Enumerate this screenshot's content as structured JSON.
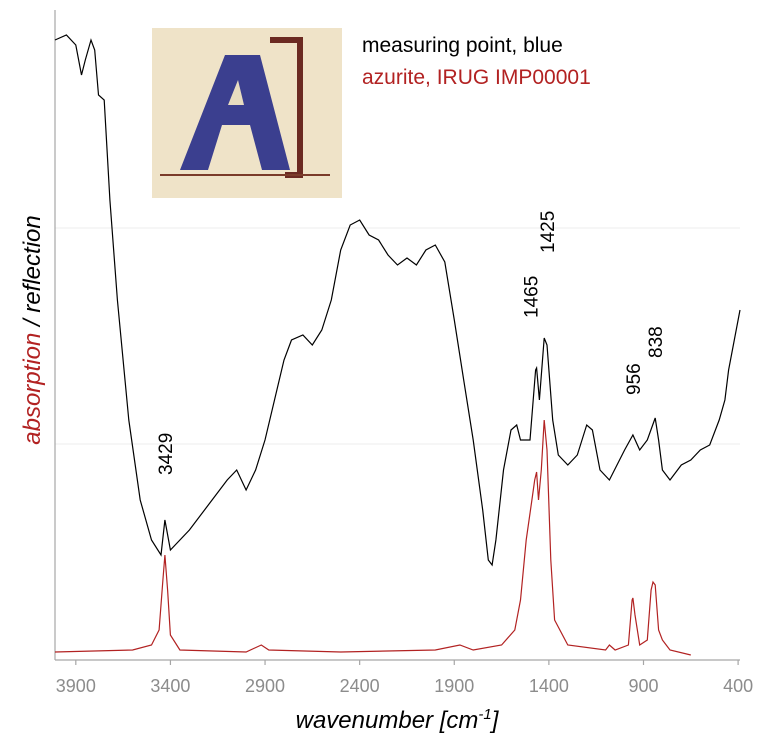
{
  "chart_data": {
    "type": "line",
    "x_label": {
      "text": "wavenumber [cm",
      "sup": "-1",
      "end": "]"
    },
    "y_label": {
      "first": "absorption",
      "first_color": "#b22222",
      "second": " / reflection"
    },
    "xlim": [
      4010,
      390
    ],
    "xticks": [
      3900,
      3400,
      2900,
      2400,
      1900,
      1400,
      900,
      400
    ],
    "ylim": [
      0,
      650
    ],
    "y_gridlines": [
      216,
      432
    ],
    "annotations": [
      3429,
      1465,
      1425,
      956,
      838
    ],
    "series": [
      {
        "name": "measuring point, blue",
        "color": "#000000",
        "x": [
          4010,
          3950,
          3900,
          3870,
          3850,
          3820,
          3800,
          3780,
          3750,
          3720,
          3680,
          3620,
          3560,
          3500,
          3450,
          3429,
          3400,
          3300,
          3200,
          3100,
          3050,
          3000,
          2950,
          2900,
          2850,
          2800,
          2760,
          2700,
          2650,
          2600,
          2550,
          2500,
          2450,
          2400,
          2350,
          2300,
          2250,
          2200,
          2150,
          2100,
          2050,
          2000,
          1950,
          1900,
          1850,
          1800,
          1750,
          1720,
          1700,
          1680,
          1640,
          1600,
          1570,
          1550,
          1500,
          1470,
          1465,
          1450,
          1425,
          1410,
          1380,
          1350,
          1300,
          1250,
          1200,
          1170,
          1130,
          1080,
          1000,
          956,
          920,
          880,
          838,
          820,
          800,
          760,
          700,
          650,
          600,
          550,
          500,
          470,
          450,
          420,
          400,
          390
        ],
        "values": [
          620,
          625,
          615,
          585,
          600,
          620,
          610,
          565,
          560,
          460,
          360,
          240,
          160,
          120,
          105,
          140,
          110,
          130,
          155,
          180,
          190,
          170,
          190,
          220,
          260,
          300,
          320,
          325,
          315,
          330,
          360,
          410,
          435,
          440,
          425,
          420,
          405,
          395,
          402,
          395,
          410,
          415,
          398,
          340,
          280,
          220,
          150,
          100,
          95,
          120,
          190,
          230,
          235,
          220,
          220,
          290,
          292,
          260,
          322,
          315,
          240,
          205,
          195,
          205,
          235,
          230,
          190,
          180,
          210,
          225,
          210,
          220,
          242,
          220,
          190,
          180,
          195,
          200,
          210,
          215,
          240,
          260,
          290,
          320,
          340,
          350
        ]
      },
      {
        "name": "azurite, IRUG IMP00001",
        "color": "#b22222",
        "x": [
          4010,
          3600,
          3500,
          3460,
          3440,
          3429,
          3415,
          3400,
          3350,
          3000,
          2920,
          2880,
          2500,
          2000,
          1870,
          1800,
          1650,
          1580,
          1550,
          1520,
          1490,
          1475,
          1465,
          1455,
          1440,
          1425,
          1410,
          1390,
          1370,
          1300,
          1100,
          1080,
          1050,
          980,
          960,
          956,
          945,
          920,
          880,
          860,
          850,
          838,
          820,
          800,
          780,
          760,
          650
        ],
        "values": [
          8,
          10,
          15,
          30,
          80,
          105,
          70,
          25,
          10,
          8,
          15,
          10,
          8,
          10,
          15,
          10,
          15,
          30,
          60,
          120,
          160,
          180,
          188,
          160,
          190,
          240,
          210,
          100,
          40,
          15,
          10,
          15,
          10,
          15,
          60,
          62,
          45,
          15,
          20,
          70,
          78,
          75,
          30,
          20,
          15,
          10,
          5
        ]
      }
    ]
  }
}
